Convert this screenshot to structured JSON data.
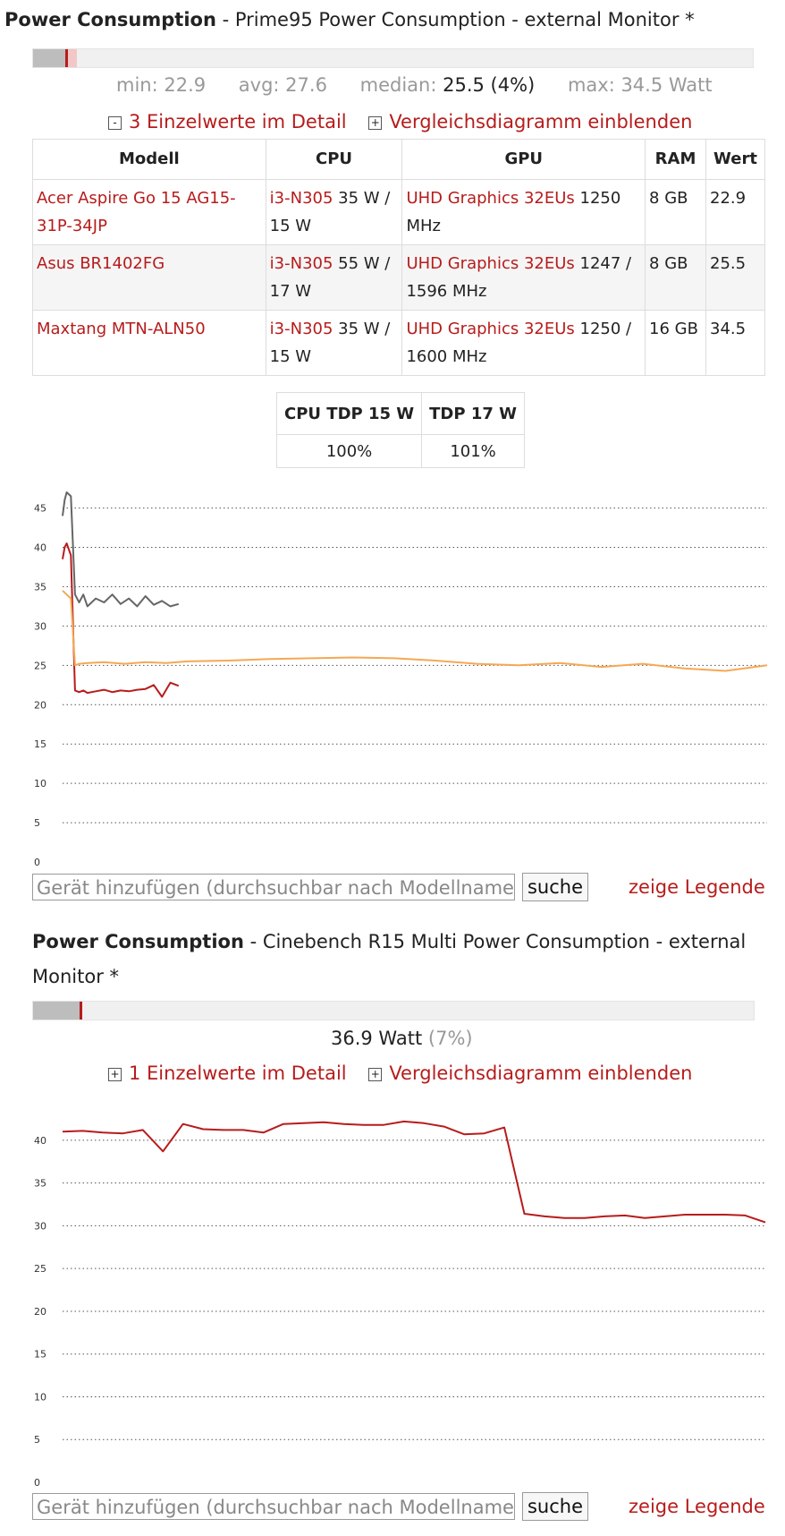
{
  "section1": {
    "title_bold": "Power Consumption",
    "title_rest": " - Prime95 Power Consumption - external Monitor *",
    "stats": {
      "min_label": "min: 22.9",
      "avg_label": "avg: 27.6",
      "median_label": "median:",
      "median_value": "25.5 (4%)",
      "max_label": "max: 34.5 Watt"
    },
    "toggle_detail_box": "-",
    "toggle_detail": "3 Einzelwerte im Detail",
    "toggle_compare_box": "+",
    "toggle_compare": "Vergleichsdiagramm einblenden",
    "table": {
      "headers": [
        "Modell",
        "CPU",
        "GPU",
        "RAM",
        "Wert"
      ],
      "rows": [
        {
          "model": "Acer Aspire Go 15 AG15-31P-34JP",
          "cpu_link": "i3-N305",
          "cpu_rest": " 35 W / 15 W",
          "gpu_link": "UHD Graphics 32EUs",
          "gpu_rest": " 1250 MHz",
          "ram": "8 GB",
          "value": "22.9"
        },
        {
          "model": "Asus BR1402FG",
          "cpu_link": "i3-N305",
          "cpu_rest": " 55 W / 17 W",
          "gpu_link": "UHD Graphics 32EUs",
          "gpu_rest": " 1247 / 1596 MHz",
          "ram": "8 GB",
          "value": "25.5"
        },
        {
          "model": "Maxtang MTN-ALN50",
          "cpu_link": "i3-N305",
          "cpu_rest": " 35 W / 15 W",
          "gpu_link": "UHD Graphics 32EUs",
          "gpu_rest": " 1250 / 1600 MHz",
          "ram": "16 GB",
          "value": "34.5"
        }
      ]
    },
    "tdp_table": {
      "headers": [
        "CPU TDP 15 W",
        "TDP 17 W"
      ],
      "values": [
        "100%",
        "101%"
      ]
    },
    "search_placeholder": "Gerät hinzufügen (durchsuchbar nach Modellname",
    "search_button": "suche",
    "legend_link": "zeige Legende"
  },
  "section2": {
    "title_bold": "Power Consumption",
    "title_rest": " - Cinebench R15 Multi Power Consumption - external",
    "title_line2": "Monitor *",
    "value_main": "36.9 Watt",
    "value_pct": "(7%)",
    "toggle_detail_box": "+",
    "toggle_detail": "1 Einzelwerte im Detail",
    "toggle_compare_box": "+",
    "toggle_compare": "Vergleichsdiagramm einblenden",
    "search_placeholder": "Gerät hinzufügen (durchsuchbar nach Modellname",
    "search_button": "suche",
    "legend_link": "zeige Legende"
  },
  "colors": {
    "accent_red": "#b71c1c",
    "series_grey": "#666666",
    "series_dark_red": "#b71c1c",
    "series_orange": "#f5a855"
  },
  "chart_data": [
    {
      "type": "line",
      "ylim": [
        0,
        47
      ],
      "yticks": [
        0,
        5,
        10,
        15,
        20,
        25,
        30,
        35,
        40,
        45
      ],
      "grid": true,
      "series": [
        {
          "color": "#666666",
          "x": [
            0,
            0.5,
            1,
            2,
            3,
            4,
            5,
            6,
            8,
            10,
            12,
            14,
            16,
            18,
            20,
            22,
            24,
            26,
            28
          ],
          "values": [
            44,
            46,
            47,
            46.5,
            34,
            33,
            34,
            32.5,
            33.5,
            33,
            34,
            32.8,
            33.5,
            32.5,
            33.8,
            32.7,
            33.2,
            32.5,
            32.8
          ]
        },
        {
          "color": "#b71c1c",
          "x": [
            0,
            0.5,
            1,
            2,
            3,
            4,
            5,
            6,
            8,
            10,
            12,
            14,
            16,
            18,
            20,
            22,
            24,
            26,
            28
          ],
          "values": [
            38.5,
            40,
            40.5,
            39,
            21.8,
            21.6,
            21.8,
            21.5,
            21.7,
            21.9,
            21.6,
            21.8,
            21.7,
            21.9,
            22,
            22.5,
            21,
            22.8,
            22.4
          ]
        },
        {
          "color": "#f5a855",
          "x": [
            0,
            1,
            2,
            3,
            4,
            6,
            10,
            15,
            20,
            25,
            30,
            40,
            50,
            60,
            70,
            80,
            90,
            100,
            110,
            120,
            130,
            140,
            150,
            160,
            170
          ],
          "values": [
            34.5,
            34,
            33.5,
            25,
            25.2,
            25.3,
            25.4,
            25.2,
            25.4,
            25.3,
            25.5,
            25.6,
            25.8,
            25.9,
            26,
            25.9,
            25.6,
            25.2,
            25,
            25.3,
            24.8,
            25.2,
            24.6,
            24.3,
            25
          ]
        }
      ]
    },
    {
      "type": "line",
      "ylim": [
        0,
        42.5
      ],
      "yticks": [
        0,
        5,
        10,
        15,
        20,
        25,
        30,
        35,
        40
      ],
      "grid": true,
      "series": [
        {
          "color": "#b71c1c",
          "x": [
            0,
            1,
            2,
            3,
            4,
            5,
            6,
            7,
            8,
            9,
            10,
            11,
            12,
            13,
            14,
            15,
            16,
            17,
            18,
            19,
            20,
            21,
            22,
            23,
            24,
            25,
            26,
            27,
            28,
            29,
            30,
            31,
            32,
            33,
            34,
            35
          ],
          "values": [
            41,
            41.1,
            40.9,
            40.8,
            41.2,
            38.7,
            41.9,
            41.3,
            41.2,
            41.2,
            40.9,
            41.9,
            42,
            42.1,
            41.9,
            41.8,
            41.8,
            42.2,
            42,
            41.6,
            40.7,
            40.8,
            41.5,
            31.4,
            31.1,
            30.9,
            30.9,
            31.1,
            31.2,
            30.9,
            31.1,
            31.3,
            31.3,
            31.3,
            31.2,
            30.4
          ]
        }
      ]
    }
  ]
}
